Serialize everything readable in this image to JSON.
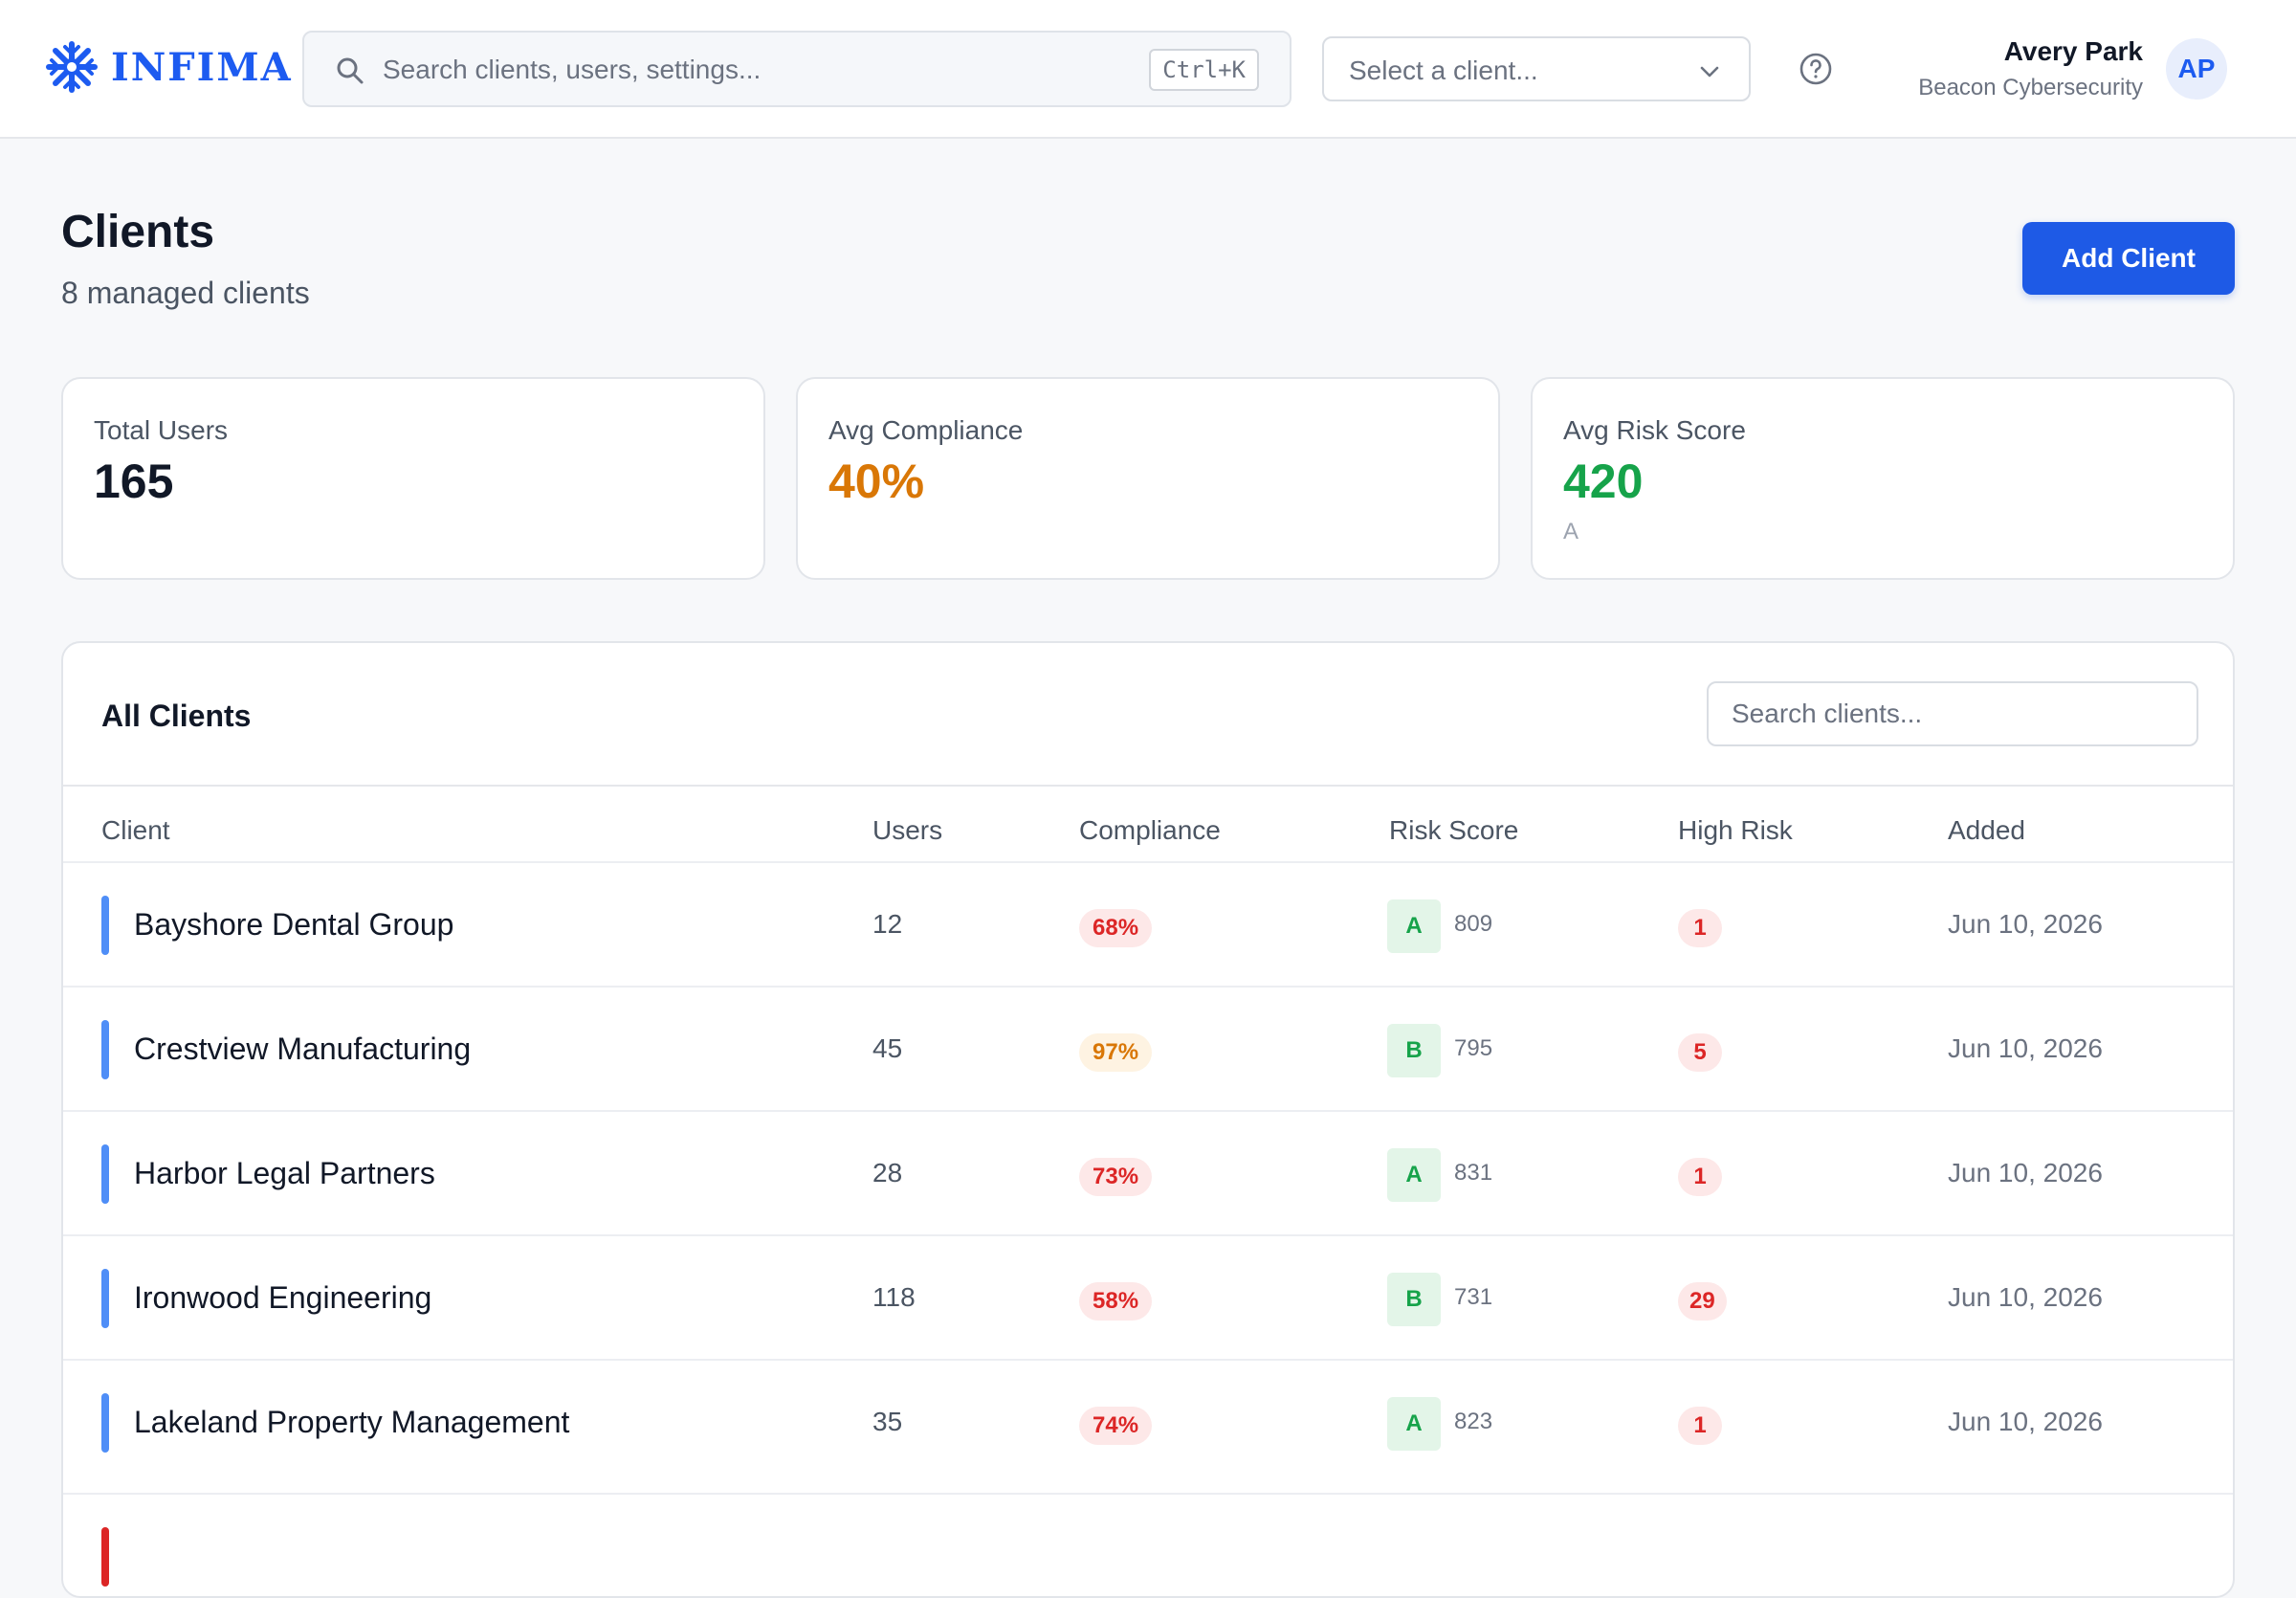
{
  "header": {
    "logo_text": "INFIMA",
    "search_placeholder": "Search clients, users, settings...",
    "shortcut": "Ctrl+K",
    "client_select_placeholder": "Select a client...",
    "user_name": "Avery Park",
    "user_org": "Beacon Cybersecurity",
    "avatar_initials": "AP"
  },
  "page": {
    "title": "Clients",
    "subtitle": "8 managed clients",
    "add_button": "Add Client"
  },
  "stats": [
    {
      "label": "Total Users",
      "value": "165",
      "sub": "",
      "color": "#111827"
    },
    {
      "label": "Avg Compliance",
      "value": "40%",
      "sub": "",
      "color": "#d97706"
    },
    {
      "label": "Avg Risk Score",
      "value": "420",
      "sub": "A",
      "color": "#16a34a"
    }
  ],
  "table": {
    "title": "All Clients",
    "search_placeholder": "Search clients...",
    "columns": [
      "Client",
      "Users",
      "Compliance",
      "Risk Score",
      "High Risk",
      "Added"
    ],
    "rows": [
      {
        "name": "Bayshore Dental Group",
        "users": "12",
        "compliance": "68%",
        "compliance_level": "red",
        "grade": "A",
        "score": "809",
        "high_risk": "1",
        "added": "Jun 10, 2026",
        "bar_color": "#4f8ef7"
      },
      {
        "name": "Crestview Manufacturing",
        "users": "45",
        "compliance": "97%",
        "compliance_level": "amber",
        "grade": "B",
        "score": "795",
        "high_risk": "5",
        "added": "Jun 10, 2026",
        "bar_color": "#4f8ef7"
      },
      {
        "name": "Harbor Legal Partners",
        "users": "28",
        "compliance": "73%",
        "compliance_level": "red",
        "grade": "A",
        "score": "831",
        "high_risk": "1",
        "added": "Jun 10, 2026",
        "bar_color": "#4f8ef7"
      },
      {
        "name": "Ironwood Engineering",
        "users": "118",
        "compliance": "58%",
        "compliance_level": "red",
        "grade": "B",
        "score": "731",
        "high_risk": "29",
        "added": "Jun 10, 2026",
        "bar_color": "#4f8ef7"
      },
      {
        "name": "Lakeland Property Management",
        "users": "35",
        "compliance": "74%",
        "compliance_level": "red",
        "grade": "A",
        "score": "823",
        "high_risk": "1",
        "added": "Jun 10, 2026",
        "bar_color": "#4f8ef7"
      }
    ]
  },
  "colors": {
    "accent": "#1e5ae6",
    "danger": "#dc2626",
    "warning": "#d97706",
    "success": "#16a34a"
  }
}
